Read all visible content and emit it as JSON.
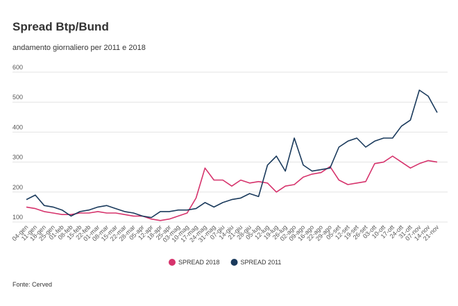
{
  "chart_data": {
    "type": "line",
    "title": "Spread Btp/Bund",
    "subtitle": "andamento giornaliero per 2011 e 2018",
    "source": "Fonte:  Cerved",
    "categories": [
      "04-gen",
      "11-gen",
      "18-gen",
      "25-gen",
      "01-feb",
      "08-feb",
      "15-feb",
      "22-feb",
      "01-mar",
      "08-mar",
      "15-mar",
      "22-mar",
      "28-mar",
      "05-apr",
      "12-apr",
      "18-apr",
      "25-apr",
      "03-mag",
      "10-mag",
      "17-mag",
      "24-mag",
      "31-mag",
      "07-giu",
      "14-giu",
      "21-giu",
      "28-giu",
      "05-lug",
      "12-lug",
      "19-lug",
      "26-lug",
      "02-ago",
      "09-ago",
      "16-ago",
      "22-ago",
      "29-ago",
      "05-set",
      "12-set",
      "19-set",
      "26-set",
      "03-ott",
      "10-ott",
      "17-ott",
      "24-ott",
      "31-ott",
      "07-nov",
      "14-nov",
      "21-nov"
    ],
    "series": [
      {
        "name": "SPREAD 2018",
        "color": "#d6336c",
        "values": [
          150,
          145,
          135,
          130,
          125,
          125,
          130,
          130,
          135,
          130,
          130,
          125,
          120,
          120,
          110,
          105,
          110,
          120,
          130,
          180,
          280,
          240,
          240,
          220,
          240,
          230,
          235,
          230,
          200,
          220,
          225,
          250,
          260,
          265,
          285,
          240,
          225,
          230,
          235,
          295,
          300,
          320,
          300,
          280,
          295,
          305,
          300
        ]
      },
      {
        "name": "SPREAD 2011",
        "color": "#1a3a5c",
        "values": [
          175,
          190,
          155,
          150,
          140,
          120,
          135,
          140,
          150,
          155,
          145,
          135,
          130,
          120,
          115,
          135,
          135,
          140,
          140,
          145,
          165,
          150,
          165,
          175,
          180,
          195,
          185,
          290,
          320,
          270,
          380,
          290,
          270,
          275,
          280,
          350,
          370,
          380,
          350,
          370,
          380,
          380,
          420,
          440,
          540,
          520,
          465
        ]
      }
    ],
    "ylim": [
      100,
      600
    ],
    "yticks": [
      100,
      200,
      300,
      400,
      500,
      600
    ],
    "grid": true,
    "legend": "bottom"
  }
}
